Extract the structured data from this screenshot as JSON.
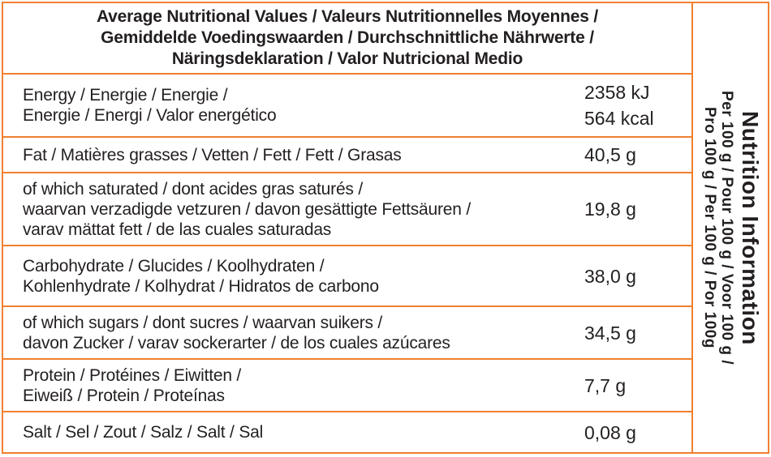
{
  "colors": {
    "border_orange": "#f0802f",
    "text": "#231f20"
  },
  "header": {
    "lines": [
      "Average Nutritional Values / Valeurs Nutritionnelles Moyennes /",
      "Gemiddelde Voedingswaarden / Durchschnittliche Nährwerte /",
      "Näringsdeklaration / Valor Nutricional Medio"
    ]
  },
  "rows": [
    {
      "id": "energy",
      "label_lines": [
        "Energy / Energie / Energie /",
        "Energie / Energi / Valor energético"
      ],
      "value_lines": [
        "2358 kJ",
        "564 kcal"
      ]
    },
    {
      "id": "fat",
      "label_lines": [
        "Fat / Matières grasses / Vetten / Fett / Fett / Grasas"
      ],
      "value_lines": [
        "40,5 g"
      ]
    },
    {
      "id": "saturated-fat",
      "label_lines": [
        "of which saturated / dont acides gras saturés /",
        "waarvan verzadigde vetzuren / davon gesättigte Fettsäuren /",
        "varav mättat fett / de las cuales saturadas"
      ],
      "value_lines": [
        "19,8 g"
      ]
    },
    {
      "id": "carbohydrate",
      "label_lines": [
        "Carbohydrate / Glucides / Koolhydraten /",
        "Kohlenhydrate / Kolhydrat / Hidratos de carbono"
      ],
      "value_lines": [
        "38,0 g"
      ]
    },
    {
      "id": "sugars",
      "label_lines": [
        "of which sugars / dont sucres / waarvan suikers /",
        "davon Zucker / varav sockerarter / de los cuales azúcares"
      ],
      "value_lines": [
        "34,5 g"
      ]
    },
    {
      "id": "protein",
      "label_lines": [
        "Protein / Protéines / Eiwitten /",
        "Eiweiß / Protein / Proteínas"
      ],
      "value_lines": [
        "7,7 g"
      ]
    },
    {
      "id": "salt",
      "label_lines": [
        "Salt / Sel / Zout / Salz / Salt / Sal"
      ],
      "value_lines": [
        "0,08 g"
      ]
    }
  ],
  "sidebar": {
    "title": "Nutrition Information",
    "per_lines": [
      "Per 100 g / Pour 100 g / Voor 100 g /",
      "Pro 100 g / Per 100 g / Por 100g"
    ]
  }
}
